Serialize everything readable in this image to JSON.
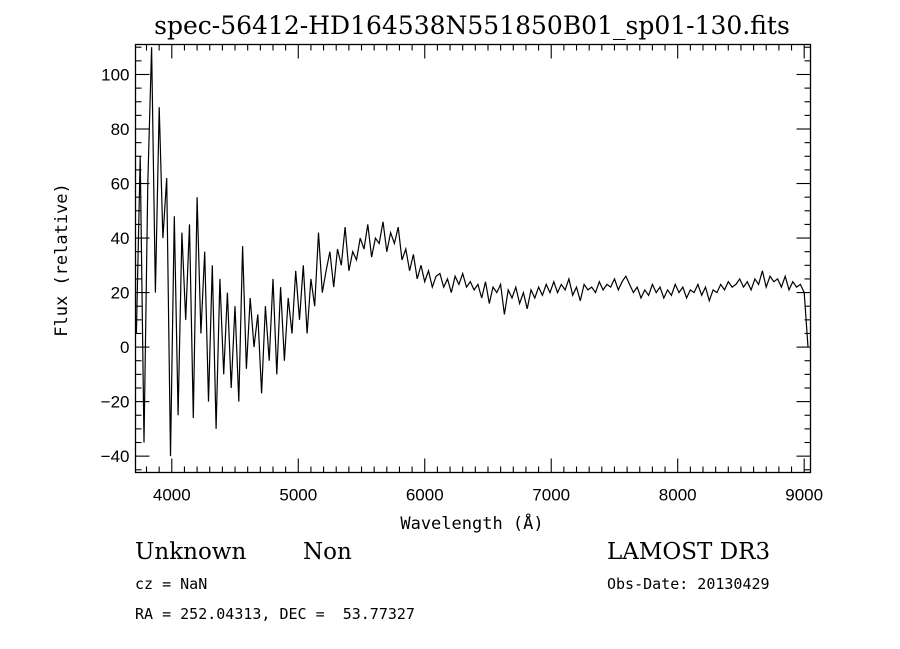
{
  "chart_data": {
    "type": "line",
    "title": "spec-56412-HD164538N551850B01_sp01-130.fits",
    "xlabel": "Wavelength (Å)",
    "ylabel": "Flux (relative)",
    "xlim": [
      3713,
      9050
    ],
    "ylim": [
      -46,
      111
    ],
    "x_ticks": [
      4000,
      5000,
      6000,
      7000,
      8000,
      9000
    ],
    "x_tick_labels": [
      "4000",
      "5000",
      "6000",
      "7000",
      "8000",
      "9000"
    ],
    "y_ticks": [
      -40,
      -20,
      0,
      20,
      40,
      60,
      80,
      100
    ],
    "y_tick_labels": [
      "−40",
      "−20",
      "0",
      "20",
      "40",
      "60",
      "80",
      "100"
    ],
    "x_minor_step": 100,
    "y_minor_step": 5,
    "grid": false,
    "series": [
      {
        "name": "flux",
        "color": "#000000",
        "x_start": 3720,
        "x_step": 30,
        "values": [
          5,
          70,
          -35,
          60,
          110,
          20,
          88,
          40,
          62,
          -40,
          48,
          -25,
          42,
          10,
          45,
          -26,
          55,
          5,
          35,
          -20,
          30,
          -30,
          25,
          -10,
          20,
          -15,
          15,
          -20,
          37,
          -8,
          18,
          0,
          12,
          -17,
          15,
          -5,
          25,
          -10,
          22,
          -5,
          18,
          5,
          28,
          10,
          30,
          5,
          25,
          15,
          42,
          20,
          28,
          35,
          22,
          36,
          30,
          44,
          28,
          35,
          32,
          40,
          36,
          45,
          33,
          40,
          38,
          46,
          35,
          42,
          38,
          44,
          32,
          36,
          28,
          34,
          25,
          30,
          24,
          28,
          22,
          26,
          27,
          22,
          25,
          20,
          26,
          23,
          27,
          22,
          24,
          21,
          23,
          18,
          24,
          16,
          22,
          20,
          23,
          12,
          21,
          18,
          22,
          16,
          20,
          14,
          21,
          18,
          22,
          19,
          23,
          20,
          24,
          20,
          23,
          21,
          25,
          19,
          22,
          17,
          23,
          21,
          22,
          20,
          24,
          21,
          23,
          22,
          25,
          21,
          24,
          26,
          23,
          20,
          22,
          18,
          21,
          19,
          23,
          20,
          22,
          18,
          21,
          19,
          23,
          20,
          22,
          18,
          21,
          20,
          23,
          19,
          22,
          17,
          21,
          20,
          23,
          21,
          24,
          22,
          23,
          25,
          22,
          24,
          21,
          25,
          23,
          28,
          22,
          26,
          24,
          25,
          22,
          26,
          21,
          24,
          22,
          23,
          20,
          0
        ]
      }
    ],
    "annotations": {
      "class": "Unknown",
      "subclass": "Non",
      "cz": "cz = NaN",
      "coords": "RA = 252.04313, DEC =  53.77327",
      "survey": "LAMOST DR3",
      "obs_date": "Obs-Date: 20130429"
    }
  }
}
